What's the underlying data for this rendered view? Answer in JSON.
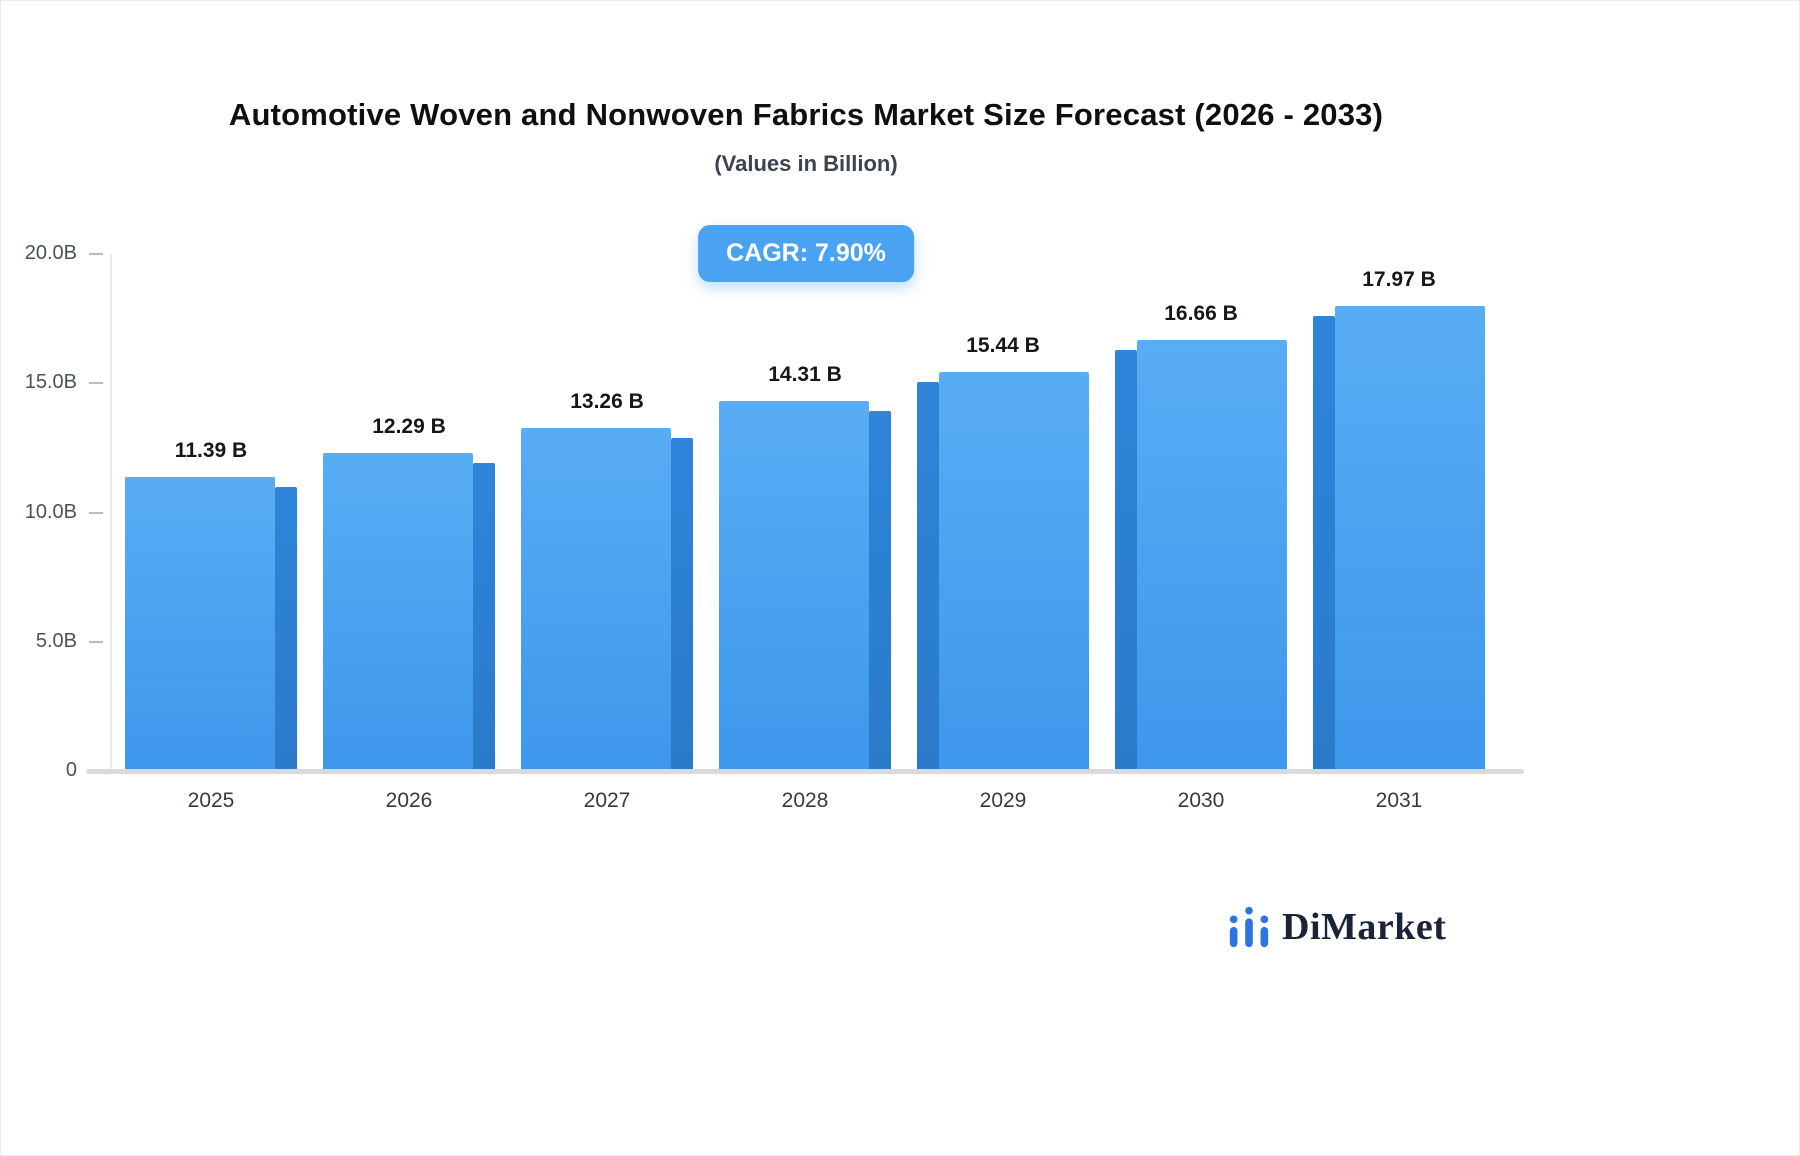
{
  "header": {
    "title": "Automotive Woven and Nonwoven Fabrics Market Size Forecast (2026 - 2033)",
    "subtitle": "(Values in Billion)"
  },
  "badge": {
    "label": "CAGR: 7.90%"
  },
  "logo": {
    "text": "DiMarket",
    "icon": "bar-chart-icon"
  },
  "colors": {
    "bar_top": "#58adf4",
    "bar_bottom": "#3e97ec",
    "bar_side": "#2b7fd0",
    "badge_bg": "#4aa3f2",
    "axis_line": "#d8dade",
    "tick_text": "#49525c",
    "value_text": "#14171b"
  },
  "chart_data": {
    "type": "bar",
    "title": "Automotive Woven and Nonwoven Fabrics Market Size Forecast (2026 - 2033)",
    "subtitle": "(Values in Billion)",
    "categories": [
      "2025",
      "2026",
      "2027",
      "2028",
      "2029",
      "2030",
      "2031"
    ],
    "values": [
      11.39,
      12.29,
      13.26,
      14.31,
      15.44,
      16.66,
      17.97
    ],
    "value_labels": [
      "11.39 B",
      "12.29 B",
      "13.26 B",
      "14.31 B",
      "15.44 B",
      "16.66 B",
      "17.97 B"
    ],
    "y_ticks": [
      {
        "value": 20,
        "label": "20.0B"
      },
      {
        "value": 15,
        "label": "15.0B"
      },
      {
        "value": 10,
        "label": "10.0B"
      },
      {
        "value": 5,
        "label": "5.0B"
      },
      {
        "value": 0,
        "label": "0"
      }
    ],
    "ylim": [
      0,
      20
    ],
    "xlabel": "",
    "ylabel": "",
    "annotation": "CAGR: 7.90%",
    "grid": false,
    "legend_position": "none"
  }
}
